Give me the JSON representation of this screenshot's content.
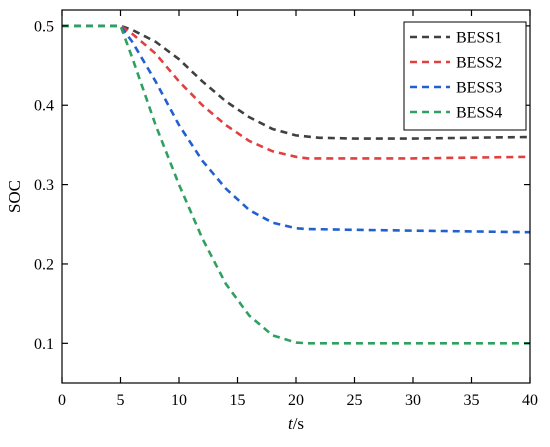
{
  "chart_data": {
    "type": "line",
    "title": "",
    "xlabel": "t/s",
    "xlabel_italic_part": "t",
    "xlabel_unit_part": "/s",
    "ylabel": "SOC",
    "xlim": [
      0,
      40
    ],
    "ylim": [
      0.05,
      0.52
    ],
    "xticks": [
      0,
      5,
      10,
      15,
      20,
      25,
      30,
      35,
      40
    ],
    "yticks": [
      0.1,
      0.2,
      0.3,
      0.4,
      0.5
    ],
    "grid": false,
    "legend": "top-right",
    "line_style": "dashed",
    "series": [
      {
        "name": "BESS1",
        "color": "#404040",
        "x": [
          0,
          5,
          6,
          8,
          10,
          12,
          14,
          16,
          18,
          20,
          22,
          25,
          30,
          35,
          40
        ],
        "y": [
          0.5,
          0.5,
          0.495,
          0.48,
          0.458,
          0.43,
          0.405,
          0.385,
          0.37,
          0.362,
          0.359,
          0.358,
          0.358,
          0.359,
          0.36
        ]
      },
      {
        "name": "BESS2",
        "color": "#e04040",
        "x": [
          0,
          5,
          6,
          8,
          10,
          12,
          14,
          16,
          18,
          20,
          21,
          25,
          30,
          35,
          40
        ],
        "y": [
          0.5,
          0.5,
          0.49,
          0.465,
          0.43,
          0.4,
          0.375,
          0.355,
          0.342,
          0.335,
          0.333,
          0.333,
          0.333,
          0.334,
          0.335
        ]
      },
      {
        "name": "BESS3",
        "color": "#2060d0",
        "x": [
          0,
          5,
          6,
          8,
          10,
          12,
          14,
          16,
          18,
          20,
          21,
          25,
          30,
          35,
          40
        ],
        "y": [
          0.5,
          0.5,
          0.48,
          0.43,
          0.375,
          0.33,
          0.295,
          0.268,
          0.252,
          0.245,
          0.244,
          0.243,
          0.242,
          0.241,
          0.24
        ]
      },
      {
        "name": "BESS4",
        "color": "#30a060",
        "x": [
          0,
          5,
          6,
          8,
          10,
          12,
          14,
          16,
          18,
          20,
          21,
          25,
          30,
          35,
          40
        ],
        "y": [
          0.5,
          0.5,
          0.46,
          0.375,
          0.3,
          0.232,
          0.175,
          0.135,
          0.11,
          0.101,
          0.1,
          0.1,
          0.1,
          0.1,
          0.1
        ]
      }
    ]
  }
}
